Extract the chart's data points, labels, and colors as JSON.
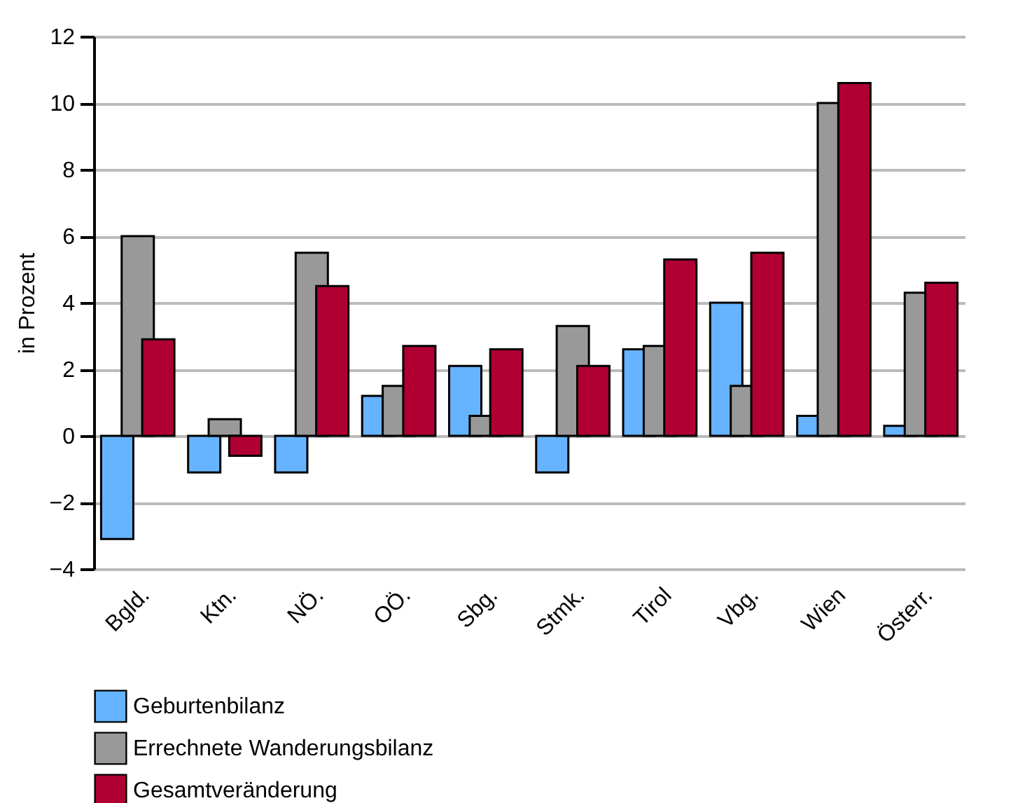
{
  "chart_data": {
    "type": "bar",
    "ylabel": "in Prozent",
    "categories": [
      "Bgld.",
      "Ktn.",
      "NÖ.",
      "OÖ.",
      "Sbg.",
      "Stmk.",
      "Tirol",
      "Vbg.",
      "Wien",
      "Österr."
    ],
    "series": [
      {
        "name": "Geburtenbilanz",
        "color": "#66b3ff",
        "values": [
          -3.1,
          -1.1,
          -1.1,
          1.2,
          2.1,
          -1.1,
          2.6,
          4.0,
          0.6,
          0.3
        ]
      },
      {
        "name": "Errechnete Wanderungsbilanz",
        "color": "#999999",
        "values": [
          6.0,
          0.5,
          5.5,
          1.5,
          0.6,
          3.3,
          2.7,
          1.5,
          10.0,
          4.3
        ]
      },
      {
        "name": "Gesamtveränderung",
        "color": "#b00033",
        "values": [
          2.9,
          -0.6,
          4.5,
          2.7,
          2.6,
          2.1,
          5.3,
          5.5,
          10.6,
          4.6
        ]
      }
    ],
    "ylim": [
      -4,
      12
    ],
    "yticks": [
      -4,
      -2,
      0,
      2,
      4,
      6,
      8,
      10,
      12
    ],
    "grid": "y",
    "legend": "bottom"
  }
}
